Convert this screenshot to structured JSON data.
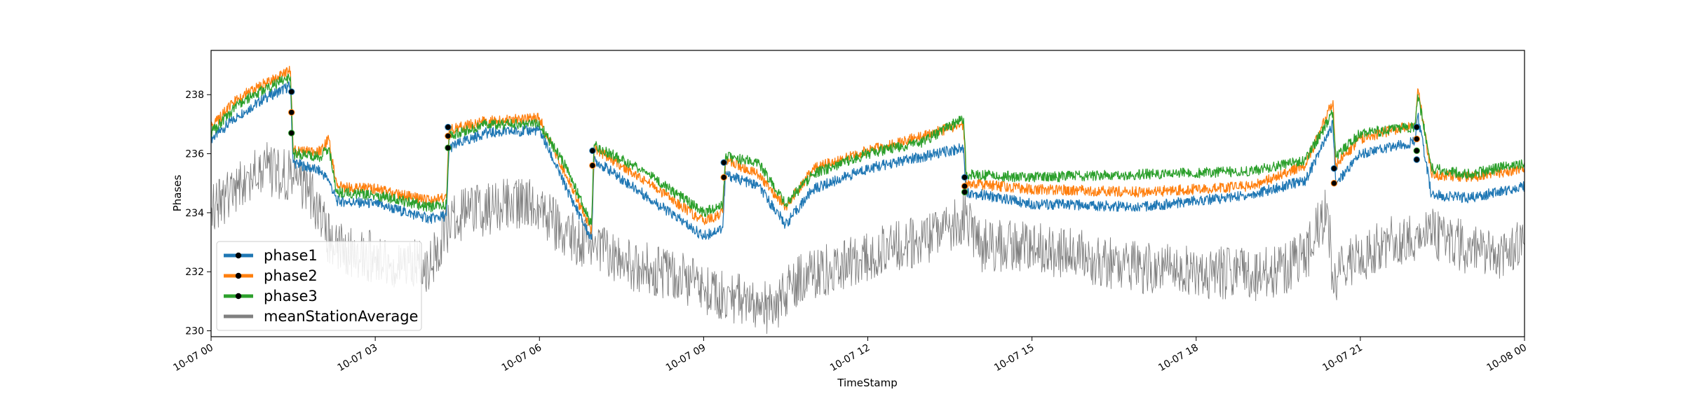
{
  "chart_data": {
    "type": "line",
    "title": "",
    "xlabel": "TimeStamp",
    "ylabel": "Phases",
    "x_range": [
      "10-07 00:00",
      "10-08 00:00"
    ],
    "ylim": [
      229.8,
      239.5
    ],
    "grid": false,
    "legend_position": "lower-left",
    "x_ticks": [
      "10-07 00",
      "10-07 03",
      "10-07 06",
      "10-07 09",
      "10-07 12",
      "10-07 15",
      "10-07 18",
      "10-07 21",
      "10-08 00"
    ],
    "y_ticks": [
      230,
      232,
      234,
      236,
      238
    ],
    "series": [
      {
        "name": "phase1",
        "color": "#1f77b4",
        "x_hours": [
          0,
          0.5,
          1.0,
          1.45,
          1.5,
          2.0,
          2.15,
          2.3,
          3.0,
          4.0,
          4.3,
          4.35,
          5.0,
          6.0,
          6.5,
          6.95,
          7.0,
          8.0,
          9.0,
          9.35,
          9.4,
          10.0,
          10.5,
          11.0,
          12.0,
          13.0,
          13.75,
          13.8,
          15.0,
          17.0,
          19.0,
          20.0,
          20.5,
          20.55,
          21.0,
          22.0,
          22.05,
          22.3,
          23.0,
          24.0
        ],
        "values": [
          236.5,
          237.3,
          237.9,
          238.3,
          235.7,
          235.4,
          235.1,
          234.4,
          234.3,
          233.8,
          233.9,
          236.2,
          236.7,
          236.8,
          234.8,
          233.1,
          235.8,
          234.5,
          233.2,
          233.5,
          235.3,
          234.9,
          233.6,
          234.8,
          235.5,
          235.9,
          236.2,
          234.7,
          234.3,
          234.2,
          234.6,
          235.1,
          237.0,
          235.0,
          236.0,
          236.4,
          237.3,
          234.6,
          234.5,
          234.9
        ]
      },
      {
        "name": "phase2",
        "color": "#ff7f0e",
        "x_hours": [
          0,
          0.5,
          1.0,
          1.45,
          1.5,
          2.0,
          2.15,
          2.3,
          3.0,
          4.0,
          4.3,
          4.35,
          5.0,
          6.0,
          6.5,
          6.95,
          7.0,
          8.0,
          9.0,
          9.35,
          9.4,
          10.0,
          10.5,
          11.0,
          12.0,
          13.0,
          13.75,
          13.8,
          15.0,
          17.0,
          19.0,
          20.0,
          20.5,
          20.55,
          21.0,
          22.0,
          22.05,
          22.3,
          23.0,
          24.0
        ],
        "values": [
          236.9,
          237.9,
          238.4,
          238.8,
          236.1,
          236.1,
          236.5,
          234.9,
          234.8,
          234.4,
          234.5,
          236.8,
          237.1,
          237.2,
          235.2,
          233.4,
          236.2,
          235.0,
          233.7,
          234.0,
          235.8,
          235.3,
          234.2,
          235.5,
          236.1,
          236.6,
          237.0,
          235.0,
          234.8,
          234.7,
          234.9,
          235.6,
          237.8,
          235.6,
          236.5,
          237.0,
          238.2,
          235.3,
          235.2,
          235.5
        ]
      },
      {
        "name": "phase3",
        "color": "#2ca02c",
        "x_hours": [
          0,
          0.5,
          1.0,
          1.45,
          1.5,
          2.0,
          2.15,
          2.3,
          3.0,
          4.0,
          4.3,
          4.35,
          5.0,
          6.0,
          6.5,
          6.95,
          7.0,
          8.0,
          9.0,
          9.35,
          9.4,
          10.0,
          10.5,
          11.0,
          12.0,
          13.0,
          13.75,
          13.8,
          15.0,
          17.0,
          19.0,
          20.0,
          20.5,
          20.55,
          21.0,
          22.0,
          22.05,
          22.3,
          23.0,
          24.0
        ],
        "values": [
          236.7,
          237.7,
          238.2,
          238.6,
          236.0,
          235.9,
          236.2,
          234.7,
          234.6,
          234.2,
          234.3,
          236.6,
          237.0,
          237.0,
          235.5,
          233.6,
          236.3,
          235.3,
          234.0,
          234.3,
          235.9,
          235.7,
          234.3,
          235.3,
          236.0,
          236.4,
          237.2,
          235.3,
          235.2,
          235.3,
          235.4,
          235.8,
          237.4,
          235.9,
          236.7,
          236.9,
          238.0,
          235.5,
          235.3,
          235.7
        ]
      },
      {
        "name": "meanStationAverage",
        "color": "#808080",
        "x_hours": [
          0,
          0.5,
          1.0,
          1.5,
          1.8,
          2.2,
          2.6,
          3.0,
          3.5,
          4.0,
          4.3,
          4.5,
          5.0,
          5.5,
          6.0,
          6.5,
          7.0,
          7.5,
          8.0,
          8.5,
          9.0,
          9.5,
          10.0,
          10.3,
          10.6,
          11.0,
          11.5,
          12.0,
          12.5,
          13.0,
          13.5,
          13.8,
          14.0,
          15.0,
          16.0,
          17.0,
          18.0,
          19.0,
          19.5,
          20.0,
          20.4,
          20.5,
          20.6,
          21.0,
          21.5,
          22.0,
          22.3,
          22.8,
          23.5,
          24.0
        ],
        "values": [
          234.2,
          234.8,
          235.5,
          235.2,
          234.8,
          232.9,
          232.6,
          232.5,
          232.3,
          232.2,
          233.5,
          233.9,
          234.1,
          234.3,
          234.2,
          233.2,
          232.9,
          232.3,
          232.1,
          231.9,
          231.4,
          231.1,
          230.9,
          230.7,
          231.6,
          231.9,
          232.2,
          232.6,
          232.9,
          233.0,
          233.5,
          233.9,
          232.9,
          232.8,
          232.5,
          232.1,
          232.0,
          231.9,
          232.0,
          232.5,
          234.2,
          231.7,
          232.0,
          232.5,
          233.0,
          233.2,
          233.3,
          232.9,
          232.6,
          232.9
        ]
      }
    ],
    "markers": {
      "color": "#000000",
      "events": [
        {
          "x_hour": 1.47,
          "values": [
            238.1,
            237.4,
            236.7
          ]
        },
        {
          "x_hour": 4.33,
          "values": [
            236.9,
            236.6,
            236.2
          ]
        },
        {
          "x_hour": 6.97,
          "values": [
            236.1,
            235.6
          ]
        },
        {
          "x_hour": 9.37,
          "values": [
            235.7,
            235.2
          ]
        },
        {
          "x_hour": 13.77,
          "values": [
            235.2,
            234.9,
            234.7
          ]
        },
        {
          "x_hour": 20.52,
          "values": [
            235.5,
            235.0
          ]
        },
        {
          "x_hour": 22.03,
          "values": [
            236.9,
            236.5,
            236.1,
            235.8
          ]
        }
      ]
    }
  }
}
